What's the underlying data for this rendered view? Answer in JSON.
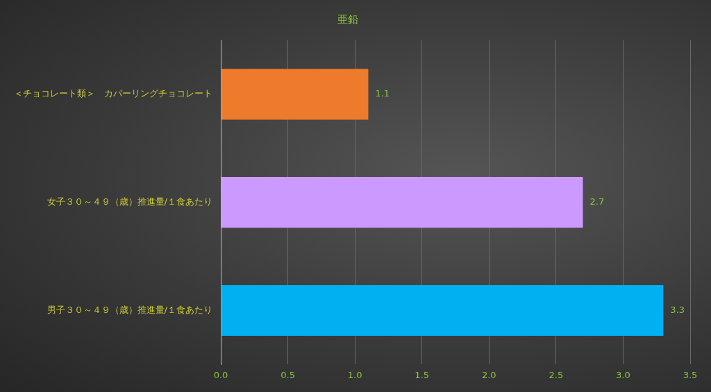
{
  "chart_data": {
    "type": "bar",
    "orientation": "horizontal",
    "title": "亜鉛",
    "categories": [
      "＜チョコレート類＞　カバーリングチョコレート",
      "女子３０～４９（歳）推進量/１食あたり",
      "男子３０～４９（歳）推進量/１食あたり"
    ],
    "values": [
      1.1,
      2.7,
      3.3
    ],
    "colors": [
      "#ee7a2c",
      "#cc99ff",
      "#00b0f0"
    ],
    "xlim": [
      0,
      3.5
    ],
    "xticks": [
      {
        "value": 0,
        "label": "0.0"
      },
      {
        "value": 0.5,
        "label": "0.5"
      },
      {
        "value": 1,
        "label": "1.0"
      },
      {
        "value": 1.5,
        "label": "1.5"
      },
      {
        "value": 2,
        "label": "2.0"
      },
      {
        "value": 2.5,
        "label": "2.5"
      },
      {
        "value": 3,
        "label": "3.0"
      },
      {
        "value": 3.5,
        "label": "3.5"
      }
    ],
    "grid": "x",
    "data_labels": true,
    "legend": false
  }
}
